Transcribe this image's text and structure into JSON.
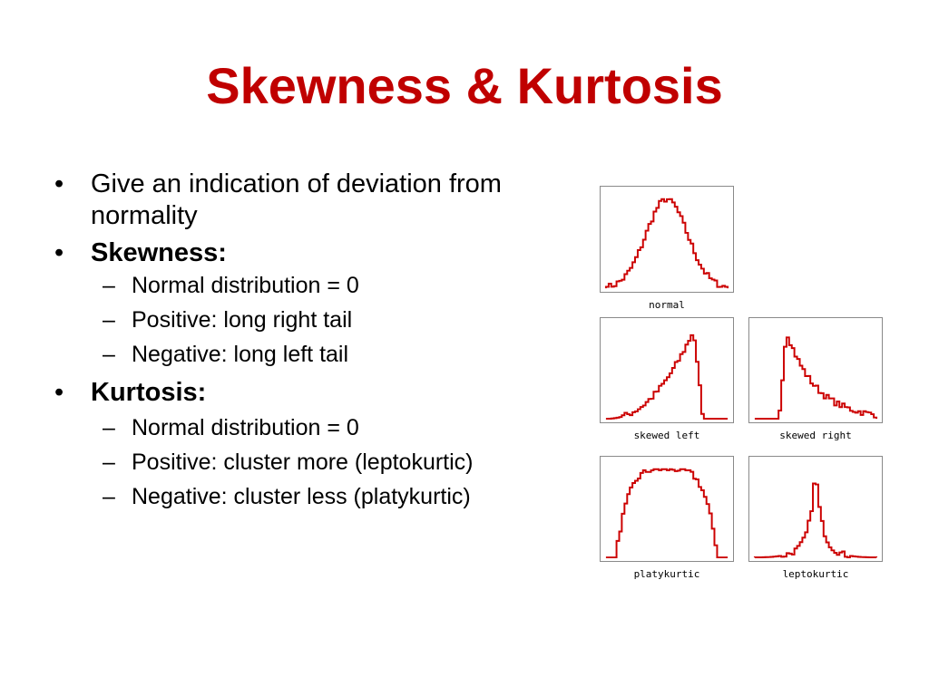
{
  "title": "Skewness & Kurtosis",
  "colors": {
    "title": "#c00000",
    "curve": "#cc0000"
  },
  "bullets": [
    {
      "text": "Give an indication of deviation from normality"
    },
    {
      "text": "Skewness:",
      "sub": [
        "Normal distribution = 0",
        "Positive: long right tail",
        "Negative: long left tail"
      ]
    },
    {
      "text": "Kurtosis:",
      "sub": [
        "Normal distribution = 0",
        "Positive: cluster more (leptokurtic)",
        "Negative: cluster less (platykurtic)"
      ]
    }
  ],
  "figures": [
    {
      "key": "normal",
      "label": "normal"
    },
    {
      "key": "skewed_left",
      "label": "skewed left"
    },
    {
      "key": "skewed_right",
      "label": "skewed right"
    },
    {
      "key": "platykurtic",
      "label": "platykurtic"
    },
    {
      "key": "leptokurtic",
      "label": "leptokurtic"
    }
  ]
}
